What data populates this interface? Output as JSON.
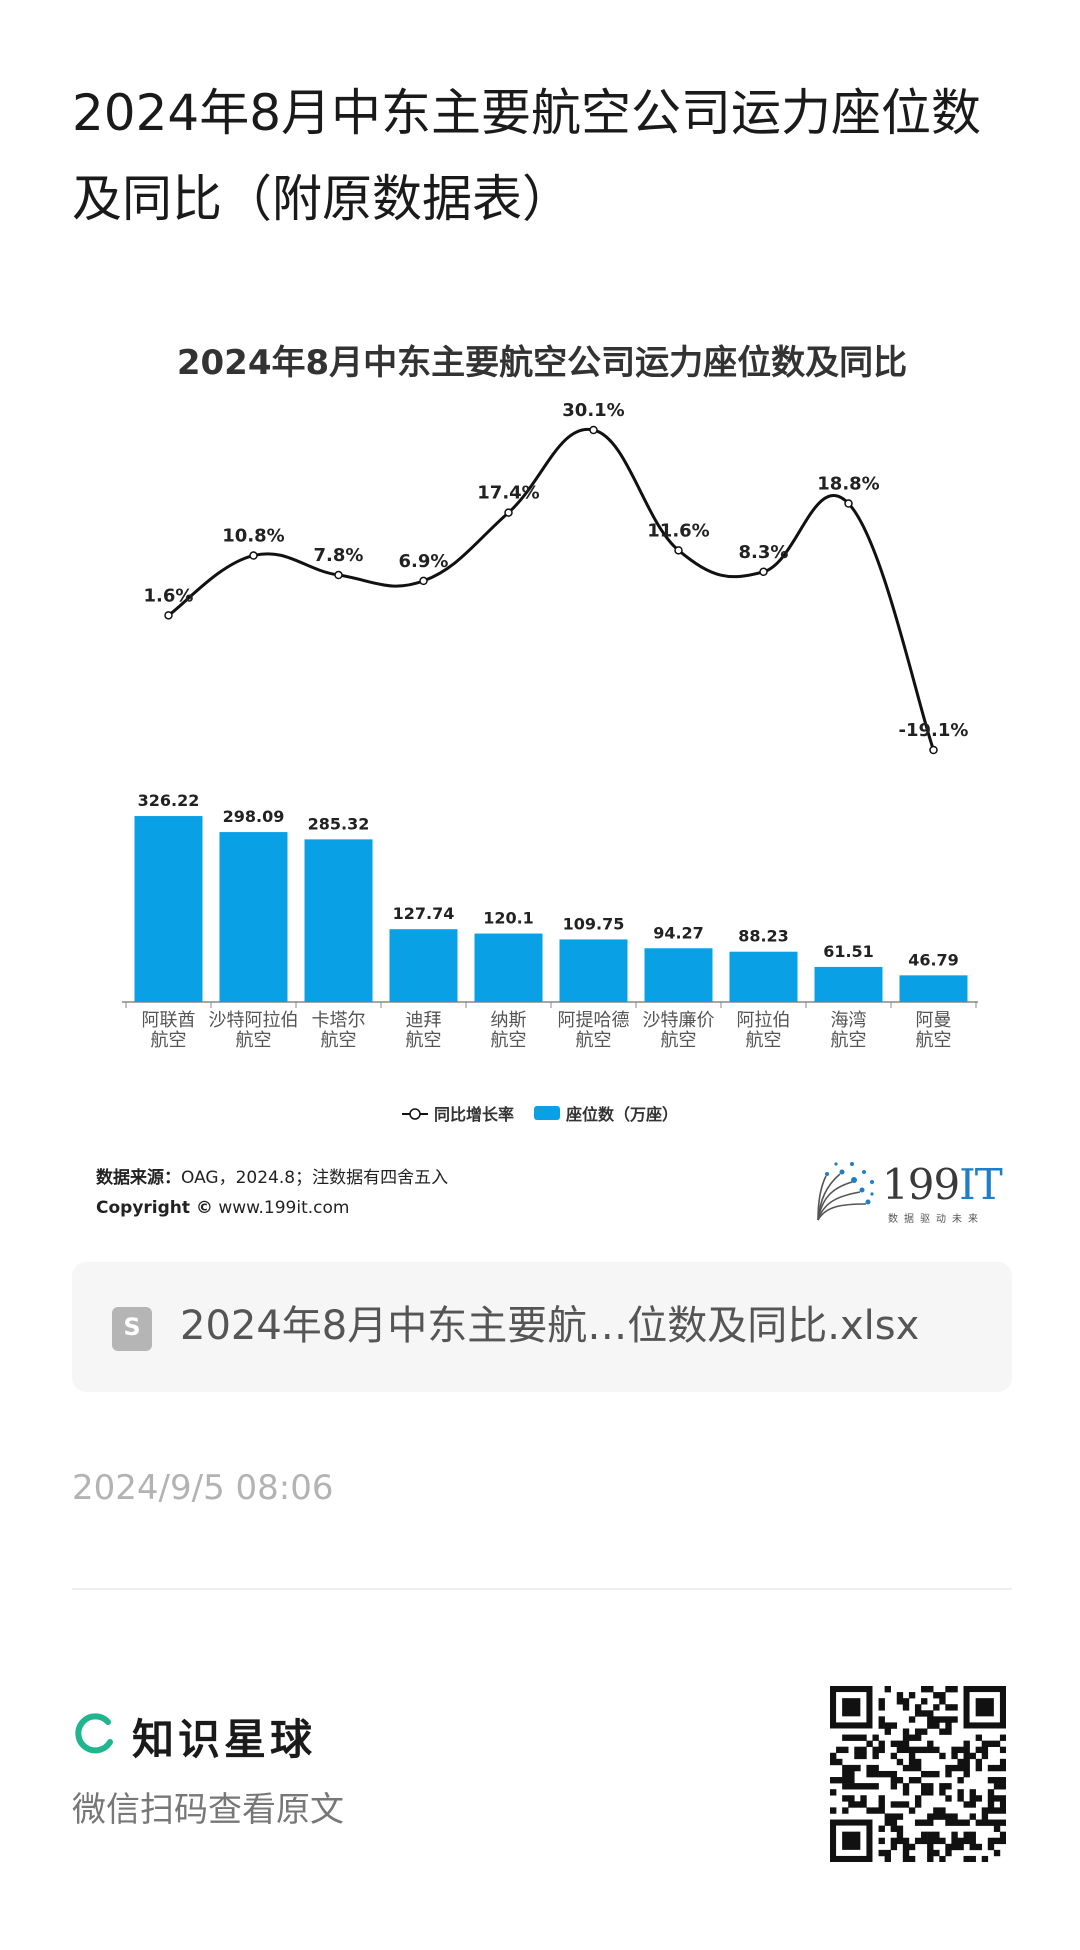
{
  "article": {
    "title": "2024年8月中东主要航空公司运力座位数及同比（附原数据表）"
  },
  "chart": {
    "source_label": "数据来源：",
    "source_text": "OAG，2024.8；注数据有四舍五入",
    "copyright_label": "Copyright ©",
    "copyright_url": "www.199it.com",
    "logo_text_num": "199",
    "logo_text_it": "IT",
    "logo_sub": "数据驱动未来"
  },
  "chart_data": {
    "type": "bar",
    "title": "2024年8月中东主要航空公司运力座位数及同比",
    "categories": [
      [
        "阿联酋",
        "航空"
      ],
      [
        "沙特阿拉伯",
        "航空"
      ],
      [
        "卡塔尔",
        "航空"
      ],
      [
        "迪拜",
        "航空"
      ],
      [
        "纳斯",
        "航空"
      ],
      [
        "阿提哈德",
        "航空"
      ],
      [
        "沙特廉价",
        "航空"
      ],
      [
        "阿拉伯",
        "航空"
      ],
      [
        "海湾",
        "航空"
      ],
      [
        "阿曼",
        "航空"
      ]
    ],
    "series": [
      {
        "name": "座位数（万座）",
        "type": "bar",
        "color": "#0aa0e6",
        "values": [
          326.22,
          298.09,
          285.32,
          127.74,
          120.1,
          109.75,
          94.27,
          88.23,
          61.51,
          46.79
        ],
        "labels": [
          "326.22",
          "298.09",
          "285.32",
          "127.74",
          "120.1",
          "109.75",
          "94.27",
          "88.23",
          "61.51",
          "46.79"
        ]
      },
      {
        "name": "同比增长率",
        "type": "line",
        "color": "#111111",
        "values": [
          1.6,
          10.8,
          7.8,
          6.9,
          17.4,
          30.1,
          11.6,
          8.3,
          18.8,
          -19.1
        ],
        "labels": [
          "1.6%",
          "10.8%",
          "7.8%",
          "6.9%",
          "17.4%",
          "30.1%",
          "11.6%",
          "8.3%",
          "18.8%",
          "-19.1%"
        ]
      }
    ],
    "legend": [
      "同比增长率",
      "座位数（万座）"
    ],
    "legend_position": "bottom",
    "grid": false
  },
  "file": {
    "name": "2024年8月中东主要航…位数及同比.xlsx",
    "icon": "spreadsheet-file-icon"
  },
  "meta": {
    "timestamp": "2024/9/5 08:06"
  },
  "footer": {
    "brand": "知识星球",
    "hint": "微信扫码查看原文",
    "brand_color": "#1fb58f"
  }
}
